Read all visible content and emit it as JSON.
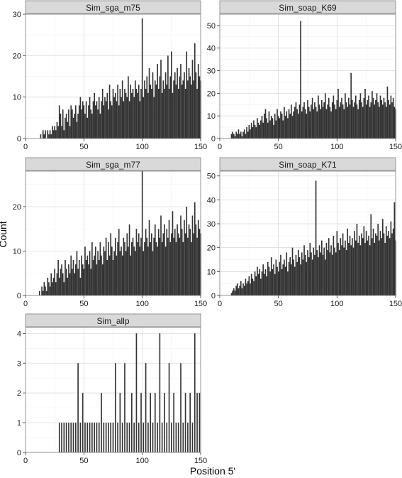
{
  "xlabel": "Position 5'",
  "ylabel": "Count",
  "colors": {
    "bar": "#333333",
    "panel_bg": "#ffffff",
    "panel_border": "#7f7f7f",
    "strip_bg": "#d9d9d9",
    "grid_major": "#dcdcdc",
    "grid_minor": "#f0f0f0"
  },
  "chart_data": [
    {
      "type": "bar",
      "panel": "Sim_sga_m75",
      "xlim": [
        0,
        150
      ],
      "ylim": [
        0,
        30
      ],
      "xticks": [
        0,
        50,
        100,
        150
      ],
      "yticks": [
        0,
        10,
        20,
        30
      ],
      "grid": true,
      "x": [
        13,
        14,
        15,
        16,
        17,
        18,
        19,
        20,
        21,
        22,
        23,
        24,
        25,
        26,
        27,
        28,
        29,
        30,
        31,
        32,
        33,
        34,
        35,
        36,
        37,
        38,
        39,
        40,
        41,
        42,
        43,
        44,
        45,
        46,
        47,
        48,
        49,
        50,
        51,
        52,
        53,
        54,
        55,
        56,
        57,
        58,
        59,
        60,
        61,
        62,
        63,
        64,
        65,
        66,
        67,
        68,
        69,
        70,
        71,
        72,
        73,
        74,
        75,
        76,
        77,
        78,
        79,
        80,
        81,
        82,
        83,
        84,
        85,
        86,
        87,
        88,
        89,
        90,
        91,
        92,
        93,
        94,
        95,
        96,
        97,
        98,
        99,
        100,
        101,
        102,
        103,
        104,
        105,
        106,
        107,
        108,
        109,
        110,
        111,
        112,
        113,
        114,
        115,
        116,
        117,
        118,
        119,
        120,
        121,
        122,
        123,
        124,
        125,
        126,
        127,
        128,
        129,
        130,
        131,
        132,
        133,
        134,
        135,
        136,
        137,
        138,
        139,
        140,
        141,
        142,
        143,
        144,
        145,
        146,
        147,
        148,
        149,
        150
      ],
      "values": [
        1,
        0,
        2,
        1,
        2,
        0,
        2,
        1,
        2,
        1,
        3,
        2,
        3,
        2,
        4,
        3,
        8,
        6,
        3,
        7,
        2,
        5,
        6,
        4,
        7,
        3,
        8,
        7,
        5,
        6,
        8,
        4,
        6,
        8,
        10,
        7,
        9,
        8,
        6,
        9,
        5,
        8,
        10,
        7,
        6,
        9,
        11,
        8,
        9,
        7,
        10,
        6,
        9,
        12,
        8,
        10,
        9,
        11,
        7,
        13,
        9,
        8,
        12,
        10,
        11,
        9,
        13,
        8,
        12,
        10,
        14,
        9,
        12,
        11,
        10,
        15,
        9,
        13,
        11,
        12,
        10,
        14,
        12,
        11,
        13,
        9,
        12,
        29,
        10,
        14,
        12,
        15,
        11,
        17,
        13,
        12,
        16,
        10,
        14,
        13,
        18,
        12,
        15,
        19,
        11,
        14,
        12,
        16,
        13,
        20,
        12,
        15,
        21,
        11,
        14,
        16,
        13,
        17,
        12,
        15,
        18,
        13,
        14,
        16,
        12,
        21,
        14,
        17,
        15,
        13,
        19,
        14,
        23,
        16,
        12,
        18,
        15,
        14
      ]
    },
    {
      "type": "bar",
      "panel": "Sim_soap_K69",
      "xlim": [
        0,
        150
      ],
      "ylim": [
        0,
        55
      ],
      "xticks": [
        0,
        50,
        100,
        150
      ],
      "yticks": [
        0,
        10,
        20,
        30,
        40,
        50
      ],
      "grid": true,
      "x": [
        10,
        11,
        12,
        13,
        14,
        15,
        16,
        17,
        18,
        19,
        20,
        21,
        22,
        23,
        24,
        25,
        26,
        27,
        28,
        29,
        30,
        31,
        32,
        33,
        34,
        35,
        36,
        37,
        38,
        39,
        40,
        41,
        42,
        43,
        44,
        45,
        46,
        47,
        48,
        49,
        50,
        51,
        52,
        53,
        54,
        55,
        56,
        57,
        58,
        59,
        60,
        61,
        62,
        63,
        64,
        65,
        66,
        67,
        68,
        69,
        70,
        71,
        72,
        73,
        74,
        75,
        76,
        77,
        78,
        79,
        80,
        81,
        82,
        83,
        84,
        85,
        86,
        87,
        88,
        89,
        90,
        91,
        92,
        93,
        94,
        95,
        96,
        97,
        98,
        99,
        100,
        101,
        102,
        103,
        104,
        105,
        106,
        107,
        108,
        109,
        110,
        111,
        112,
        113,
        114,
        115,
        116,
        117,
        118,
        119,
        120,
        121,
        122,
        123,
        124,
        125,
        126,
        127,
        128,
        129,
        130,
        131,
        132,
        133,
        134,
        135,
        136,
        137,
        138,
        139,
        140,
        141,
        142,
        143,
        144,
        145,
        146,
        147,
        148,
        149,
        150
      ],
      "values": [
        2,
        3,
        2,
        1,
        3,
        2,
        4,
        2,
        3,
        1,
        3,
        4,
        2,
        5,
        3,
        6,
        4,
        7,
        5,
        8,
        6,
        5,
        9,
        7,
        6,
        8,
        10,
        7,
        11,
        13,
        9,
        7,
        12,
        8,
        10,
        9,
        6,
        11,
        8,
        13,
        10,
        9,
        12,
        11,
        8,
        14,
        10,
        12,
        9,
        13,
        11,
        15,
        10,
        12,
        14,
        16,
        13,
        11,
        15,
        52,
        12,
        14,
        16,
        13,
        11,
        17,
        14,
        12,
        15,
        18,
        13,
        16,
        14,
        12,
        19,
        15,
        13,
        17,
        14,
        16,
        20,
        13,
        15,
        18,
        14,
        12,
        16,
        19,
        15,
        13,
        17,
        22,
        14,
        16,
        18,
        15,
        13,
        20,
        16,
        14,
        18,
        15,
        29,
        17,
        14,
        16,
        19,
        15,
        13,
        17,
        20,
        16,
        14,
        18,
        22,
        15,
        17,
        19,
        14,
        16,
        21,
        18,
        15,
        17,
        20,
        16,
        14,
        19,
        17,
        15,
        18,
        16,
        14,
        23,
        17,
        15,
        19,
        16,
        18,
        14,
        13
      ]
    },
    {
      "type": "bar",
      "panel": "Sim_sga_m77",
      "xlim": [
        0,
        150
      ],
      "ylim": [
        0,
        28
      ],
      "xticks": [
        0,
        50,
        100,
        150
      ],
      "yticks": [
        0,
        10,
        20
      ],
      "grid": true,
      "x": [
        12,
        13,
        14,
        15,
        16,
        17,
        18,
        19,
        20,
        21,
        22,
        23,
        24,
        25,
        26,
        27,
        28,
        29,
        30,
        31,
        32,
        33,
        34,
        35,
        36,
        37,
        38,
        39,
        40,
        41,
        42,
        43,
        44,
        45,
        46,
        47,
        48,
        49,
        50,
        51,
        52,
        53,
        54,
        55,
        56,
        57,
        58,
        59,
        60,
        61,
        62,
        63,
        64,
        65,
        66,
        67,
        68,
        69,
        70,
        71,
        72,
        73,
        74,
        75,
        76,
        77,
        78,
        79,
        80,
        81,
        82,
        83,
        84,
        85,
        86,
        87,
        88,
        89,
        90,
        91,
        92,
        93,
        94,
        95,
        96,
        97,
        98,
        99,
        100,
        101,
        102,
        103,
        104,
        105,
        106,
        107,
        108,
        109,
        110,
        111,
        112,
        113,
        114,
        115,
        116,
        117,
        118,
        119,
        120,
        121,
        122,
        123,
        124,
        125,
        126,
        127,
        128,
        129,
        130,
        131,
        132,
        133,
        134,
        135,
        136,
        137,
        138,
        139,
        140,
        141,
        142,
        143,
        144,
        145,
        146,
        147,
        148,
        149,
        150
      ],
      "values": [
        1,
        0,
        2,
        1,
        3,
        2,
        1,
        4,
        3,
        2,
        5,
        3,
        4,
        6,
        3,
        5,
        8,
        4,
        6,
        7,
        5,
        3,
        8,
        6,
        4,
        7,
        5,
        9,
        6,
        8,
        5,
        7,
        10,
        6,
        8,
        4,
        9,
        7,
        6,
        11,
        8,
        9,
        7,
        10,
        6,
        12,
        8,
        9,
        11,
        7,
        10,
        8,
        12,
        9,
        7,
        11,
        10,
        13,
        8,
        12,
        9,
        14,
        11,
        8,
        10,
        13,
        9,
        12,
        15,
        10,
        11,
        9,
        13,
        12,
        10,
        14,
        11,
        16,
        9,
        12,
        13,
        11,
        10,
        15,
        12,
        14,
        11,
        13,
        28,
        10,
        12,
        15,
        13,
        11,
        17,
        12,
        14,
        10,
        13,
        16,
        12,
        11,
        15,
        13,
        18,
        12,
        14,
        16,
        11,
        15,
        13,
        17,
        12,
        14,
        19,
        13,
        15,
        12,
        16,
        14,
        13,
        18,
        15,
        12,
        17,
        14,
        20,
        13,
        16,
        15,
        12,
        18,
        14,
        21,
        16,
        13,
        17,
        15,
        14
      ]
    },
    {
      "type": "bar",
      "panel": "Sim_soap_K71",
      "xlim": [
        0,
        150
      ],
      "ylim": [
        0,
        52
      ],
      "xticks": [
        0,
        50,
        100,
        150
      ],
      "yticks": [
        0,
        10,
        20,
        30,
        40,
        50
      ],
      "grid": true,
      "x": [
        10,
        11,
        12,
        13,
        14,
        15,
        16,
        17,
        18,
        19,
        20,
        21,
        22,
        23,
        24,
        25,
        26,
        27,
        28,
        29,
        30,
        31,
        32,
        33,
        34,
        35,
        36,
        37,
        38,
        39,
        40,
        41,
        42,
        43,
        44,
        45,
        46,
        47,
        48,
        49,
        50,
        51,
        52,
        53,
        54,
        55,
        56,
        57,
        58,
        59,
        60,
        61,
        62,
        63,
        64,
        65,
        66,
        67,
        68,
        69,
        70,
        71,
        72,
        73,
        74,
        75,
        76,
        77,
        78,
        79,
        80,
        81,
        82,
        83,
        84,
        85,
        86,
        87,
        88,
        89,
        90,
        91,
        92,
        93,
        94,
        95,
        96,
        97,
        98,
        99,
        100,
        101,
        102,
        103,
        104,
        105,
        106,
        107,
        108,
        109,
        110,
        111,
        112,
        113,
        114,
        115,
        116,
        117,
        118,
        119,
        120,
        121,
        122,
        123,
        124,
        125,
        126,
        127,
        128,
        129,
        130,
        131,
        132,
        133,
        134,
        135,
        136,
        137,
        138,
        139,
        140,
        141,
        142,
        143,
        144,
        145,
        146,
        147,
        148,
        149,
        150
      ],
      "values": [
        1,
        2,
        3,
        2,
        4,
        5,
        3,
        4,
        6,
        3,
        5,
        4,
        7,
        5,
        6,
        8,
        5,
        9,
        7,
        6,
        10,
        8,
        12,
        9,
        11,
        7,
        10,
        13,
        9,
        11,
        8,
        14,
        12,
        10,
        16,
        11,
        13,
        9,
        15,
        12,
        10,
        14,
        17,
        11,
        13,
        15,
        12,
        18,
        10,
        14,
        16,
        13,
        20,
        15,
        12,
        17,
        14,
        19,
        16,
        13,
        18,
        15,
        21,
        17,
        14,
        19,
        16,
        22,
        18,
        15,
        20,
        17,
        48,
        19,
        16,
        21,
        18,
        23,
        17,
        20,
        15,
        22,
        19,
        24,
        18,
        21,
        17,
        25,
        20,
        18,
        27,
        22,
        19,
        24,
        21,
        26,
        20,
        23,
        19,
        28,
        22,
        25,
        21,
        24,
        20,
        27,
        23,
        30,
        22,
        25,
        21,
        26,
        24,
        29,
        22,
        27,
        23,
        25,
        21,
        34,
        24,
        28,
        22,
        26,
        25,
        30,
        23,
        27,
        24,
        32,
        26,
        22,
        29,
        25,
        27,
        24,
        31,
        26,
        28,
        39,
        23
      ]
    },
    {
      "type": "bar",
      "panel": "Sim_allp",
      "xlim": [
        0,
        150
      ],
      "ylim": [
        0,
        4.2
      ],
      "xticks": [
        0,
        50,
        100,
        150
      ],
      "yticks": [
        0,
        1,
        2,
        3,
        4
      ],
      "grid": true,
      "x": [
        29,
        31,
        33,
        35,
        37,
        39,
        41,
        43,
        45,
        47,
        49,
        51,
        53,
        55,
        57,
        59,
        61,
        63,
        65,
        67,
        69,
        71,
        73,
        75,
        77,
        79,
        81,
        83,
        85,
        87,
        89,
        91,
        93,
        95,
        97,
        99,
        101,
        103,
        105,
        107,
        109,
        111,
        113,
        115,
        117,
        119,
        121,
        123,
        125,
        127,
        129,
        131,
        133,
        135,
        137,
        139,
        141,
        143,
        145,
        147,
        149
      ],
      "values": [
        1,
        1,
        1,
        1,
        1,
        1,
        1,
        1,
        3,
        1,
        2,
        1,
        1,
        1,
        1,
        1,
        1,
        1,
        2,
        1,
        1,
        1,
        1,
        1,
        3,
        1,
        2,
        1,
        3,
        1,
        1,
        2,
        1,
        4,
        1,
        2,
        1,
        3,
        1,
        2,
        1,
        2,
        1,
        4,
        1,
        2,
        1,
        3,
        1,
        2,
        1,
        1,
        3,
        1,
        2,
        1,
        2,
        1,
        4,
        2,
        2
      ]
    }
  ]
}
